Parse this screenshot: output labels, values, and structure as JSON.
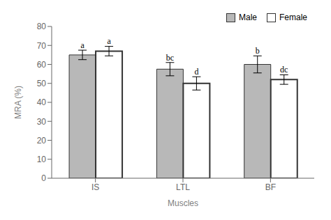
{
  "chart_data": {
    "type": "bar",
    "categories": [
      "IS",
      "LTL",
      "BF"
    ],
    "series": [
      {
        "name": "Male",
        "color": "#b8b8b8",
        "values": [
          65.0,
          57.5,
          60.0
        ],
        "errors": [
          2.5,
          3.5,
          4.5
        ],
        "annotations": [
          "a",
          "bc",
          "b"
        ]
      },
      {
        "name": "Female",
        "color": "#ffffff",
        "values": [
          67.0,
          50.0,
          52.0
        ],
        "errors": [
          2.5,
          3.5,
          2.5
        ],
        "annotations": [
          "a",
          "d",
          "dc"
        ]
      }
    ],
    "xlabel": "Muscles",
    "ylabel": "MRA (%)",
    "ylim": [
      0,
      80
    ],
    "yticks": [
      0,
      10,
      20,
      30,
      40,
      50,
      60,
      70,
      80
    ],
    "grid": false,
    "legend": "upper right"
  }
}
